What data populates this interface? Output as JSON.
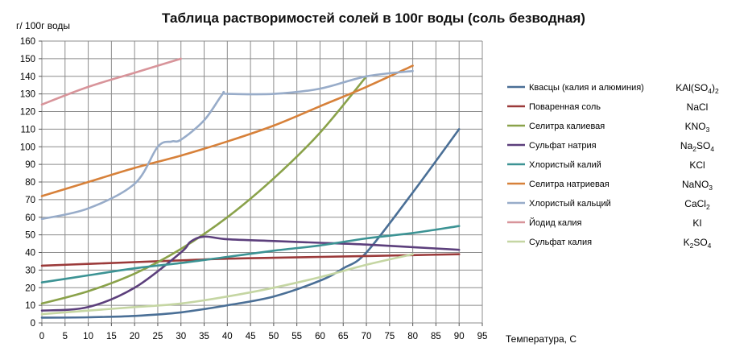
{
  "chart_data": {
    "type": "line",
    "title": "Таблица растворимостей  солей в 100г воды  (соль безводная)",
    "ylabel": "г/ 100г воды",
    "xlabel": "Температура, С",
    "xlim": [
      0,
      95
    ],
    "ylim": [
      0,
      160
    ],
    "xticks": [
      0,
      5,
      10,
      15,
      20,
      25,
      30,
      35,
      40,
      45,
      50,
      55,
      60,
      65,
      70,
      75,
      80,
      85,
      90,
      95
    ],
    "yticks": [
      0,
      10,
      20,
      30,
      40,
      50,
      60,
      70,
      80,
      90,
      100,
      110,
      120,
      130,
      140,
      150,
      160
    ],
    "grid": true,
    "legend_position": "right",
    "series": [
      {
        "name": "Квасцы (калия и алюминия)",
        "formula": "KAl(SO4)2",
        "formula_parts": [
          [
            "KAl(SO",
            ""
          ],
          [
            "4",
            "sub"
          ],
          [
            ")",
            ""
          ],
          [
            "2",
            "sub"
          ]
        ],
        "color": "#4a6f96",
        "x": [
          0,
          10,
          20,
          30,
          40,
          50,
          60,
          65,
          70,
          80,
          90
        ],
        "y": [
          3,
          3.2,
          4,
          6,
          10,
          15,
          24,
          31,
          40,
          74,
          110
        ]
      },
      {
        "name": "Поваренная соль",
        "formula": "NaCl",
        "formula_parts": [
          [
            "NaCl",
            ""
          ]
        ],
        "color": "#9b3a3a",
        "x": [
          0,
          10,
          20,
          30,
          40,
          50,
          60,
          70,
          80,
          90
        ],
        "y": [
          32.5,
          33.5,
          34.5,
          35.5,
          36.5,
          37,
          37.5,
          38,
          38.5,
          39
        ]
      },
      {
        "name": "Селитра калиевая",
        "formula": "KNO3",
        "formula_parts": [
          [
            "KNO",
            ""
          ],
          [
            "3",
            "sub"
          ]
        ],
        "color": "#8aa24a",
        "x": [
          0,
          10,
          20,
          30,
          40,
          50,
          60,
          70
        ],
        "y": [
          11,
          18,
          28,
          42,
          60,
          82,
          108,
          140
        ]
      },
      {
        "name": "Сульфат натрия",
        "formula": "Na2SO4",
        "formula_parts": [
          [
            "Na",
            ""
          ],
          [
            "2",
            "sub"
          ],
          [
            "SO",
            ""
          ],
          [
            "4",
            "sub"
          ]
        ],
        "color": "#5c3f7c",
        "x": [
          0,
          10,
          20,
          30,
          32,
          35,
          40,
          50,
          60,
          70,
          80,
          90
        ],
        "y": [
          7,
          9,
          20,
          40,
          46,
          49,
          47.5,
          46.5,
          45.5,
          44.5,
          43,
          41.5
        ]
      },
      {
        "name": "Хлористый калий",
        "formula": "KCl",
        "formula_parts": [
          [
            "KCl",
            ""
          ]
        ],
        "color": "#3c9394",
        "x": [
          0,
          10,
          20,
          30,
          40,
          50,
          60,
          70,
          80,
          90
        ],
        "y": [
          23,
          27,
          31,
          34,
          37.5,
          41,
          44,
          48,
          51,
          55
        ]
      },
      {
        "name": "Селитра натриевая",
        "formula": "NaNO3",
        "formula_parts": [
          [
            "NaNO",
            ""
          ],
          [
            "3",
            "sub"
          ]
        ],
        "color": "#d7813a",
        "x": [
          0,
          10,
          20,
          30,
          40,
          50,
          60,
          70,
          80
        ],
        "y": [
          72,
          80,
          88,
          95,
          103,
          112,
          123,
          134,
          146
        ]
      },
      {
        "name": "Хлористый кальций",
        "formula": "CaCl2",
        "formula_parts": [
          [
            "CaCl",
            ""
          ],
          [
            "2",
            "sub"
          ]
        ],
        "color": "#98acc9",
        "x": [
          0,
          10,
          20,
          25,
          28,
          30,
          35,
          39,
          40,
          50,
          60,
          70,
          80
        ],
        "y": [
          59,
          65,
          79,
          100,
          103,
          104,
          115,
          130,
          130,
          130,
          133,
          140,
          143
        ]
      },
      {
        "name": "Йодид калия",
        "formula": "KI",
        "formula_parts": [
          [
            "KI",
            ""
          ]
        ],
        "color": "#d8949a",
        "x": [
          0,
          10,
          20,
          30
        ],
        "y": [
          124,
          134,
          142,
          150
        ]
      },
      {
        "name": "Сульфат калия",
        "formula": "K2SO4",
        "formula_parts": [
          [
            "K",
            ""
          ],
          [
            "2",
            "sub"
          ],
          [
            "SO",
            ""
          ],
          [
            "4",
            "sub"
          ]
        ],
        "color": "#c5d6a3",
        "x": [
          0,
          10,
          20,
          30,
          40,
          50,
          60,
          70,
          80
        ],
        "y": [
          5,
          7,
          9,
          11,
          15,
          20,
          26,
          33,
          39
        ]
      }
    ]
  }
}
